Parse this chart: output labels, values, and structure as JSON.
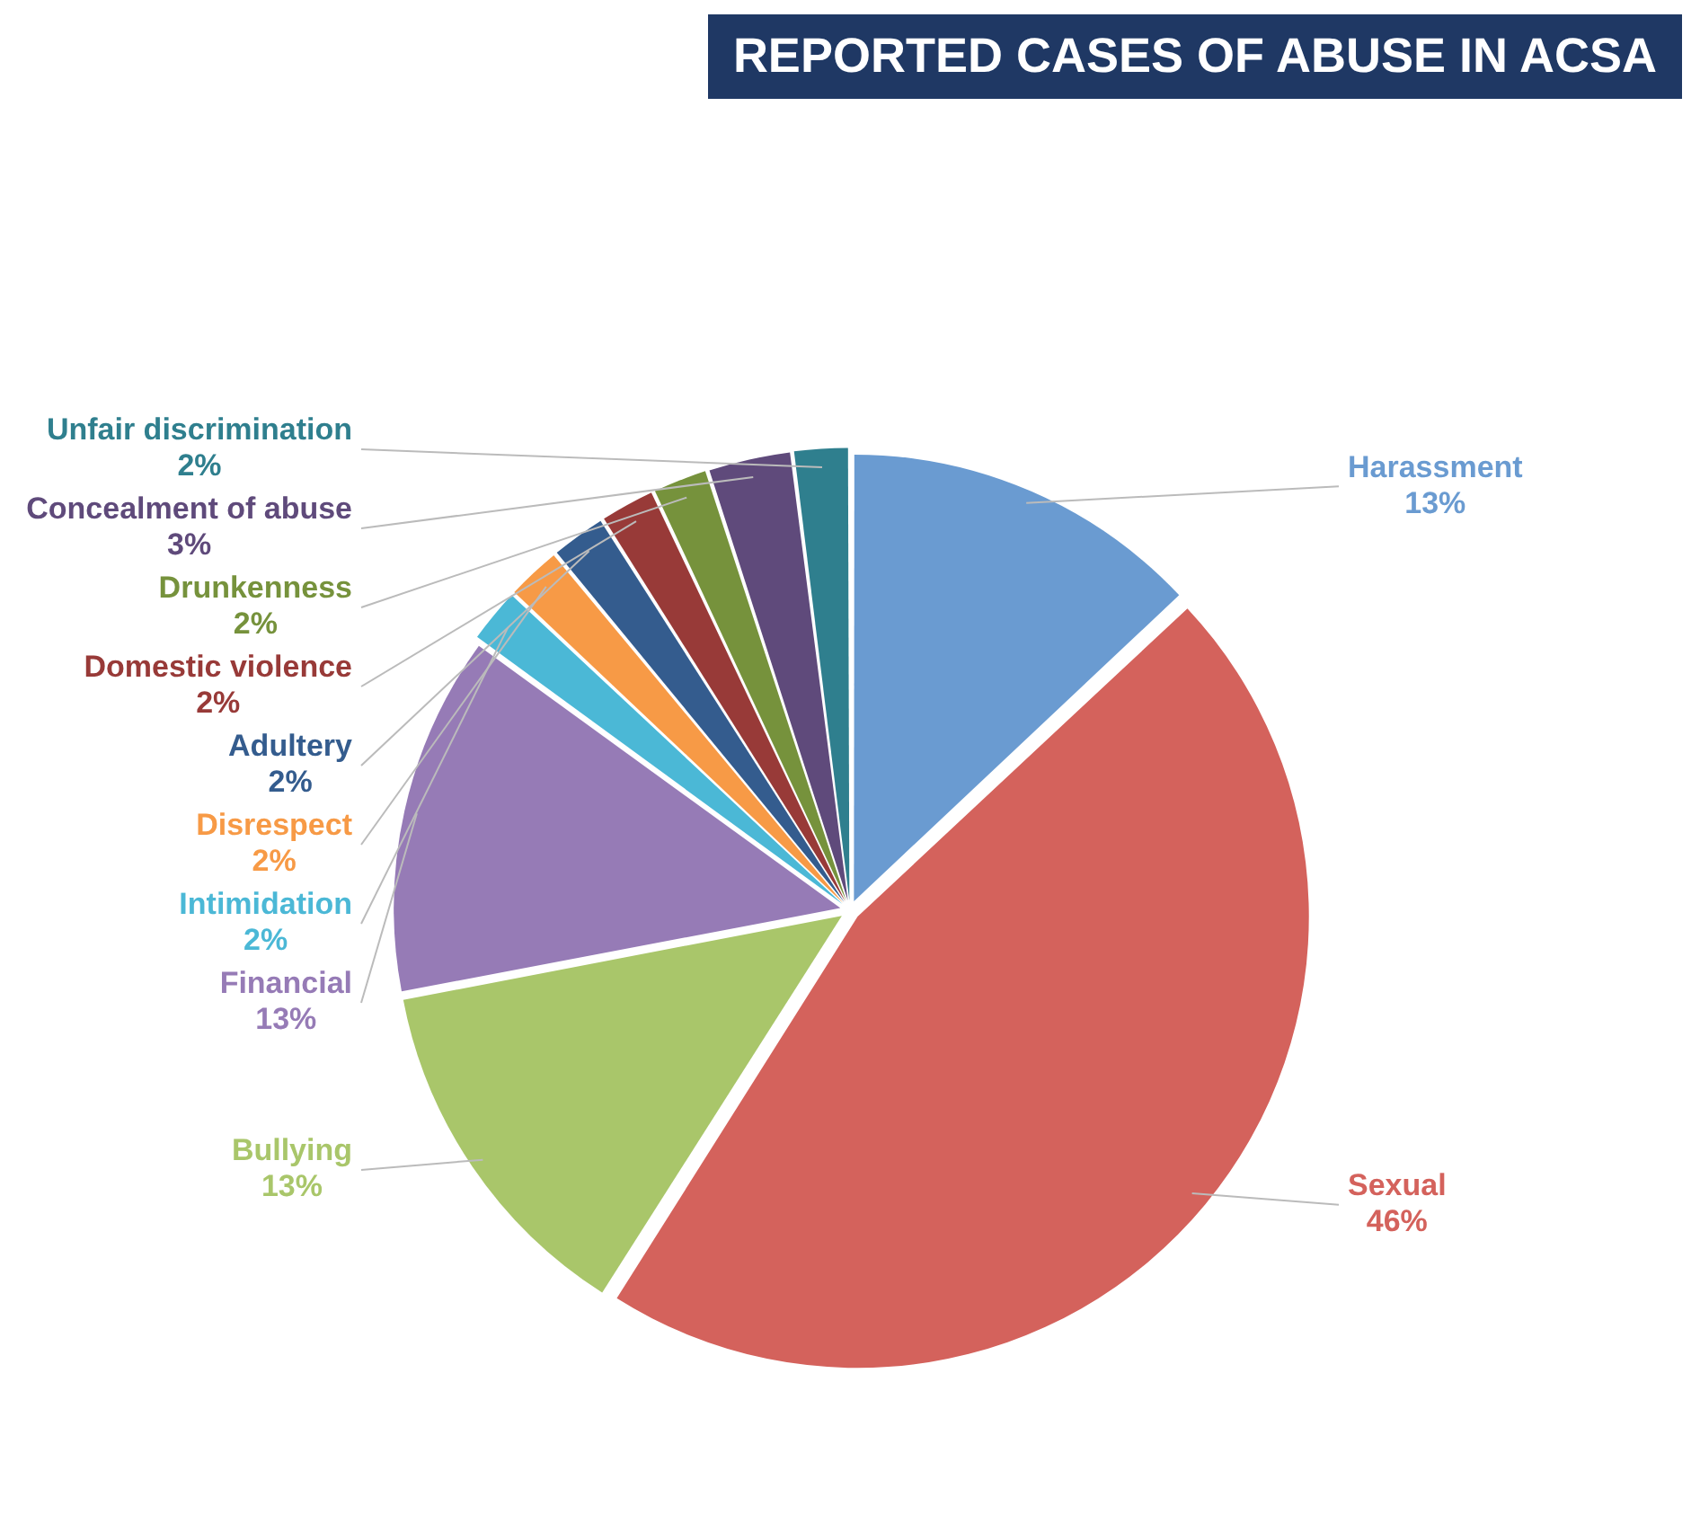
{
  "chart_data": {
    "type": "pie",
    "title": "REPORTED CASES OF ABUSE IN ACSA",
    "categories": [
      "Harassment",
      "Sexual",
      "Bullying",
      "Financial",
      "Intimidation",
      "Disrespect",
      "Adultery",
      "Domestic violence",
      "Drunkenness",
      "Concealment of abuse",
      "Unfair discrimination"
    ],
    "values": [
      13,
      46,
      13,
      13,
      2,
      2,
      2,
      2,
      2,
      3,
      2
    ],
    "value_labels": [
      "13%",
      "46%",
      "13%",
      "13%",
      "2%",
      "2%",
      "2%",
      "2%",
      "2%",
      "3%",
      "2%"
    ],
    "colors": [
      "#6a9bd1",
      "#d4625c",
      "#a9c66a",
      "#967bb6",
      "#4bb8d6",
      "#f79a46",
      "#345c8e",
      "#983a38",
      "#76923c",
      "#5f4a7b",
      "#2f7f8e"
    ],
    "legend": false
  }
}
